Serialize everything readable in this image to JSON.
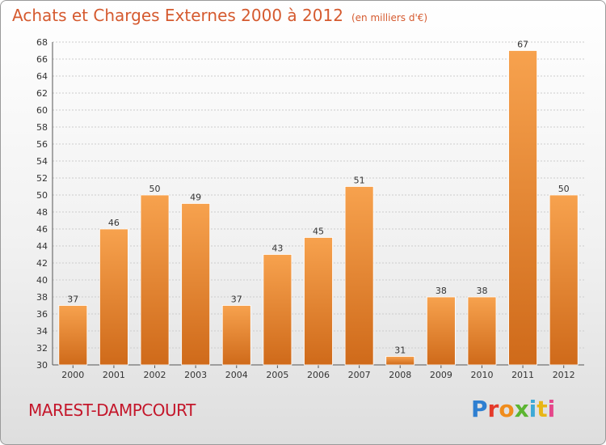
{
  "header": {
    "title": "Achats et Charges Externes 2000 à 2012",
    "unit": "(en milliers d'€)"
  },
  "footer": {
    "commune": "MAREST-DAMPCOURT",
    "logo_letters": [
      "P",
      "r",
      "o",
      "x",
      "i",
      "t",
      "i"
    ]
  },
  "colors": {
    "bar_light": "#f7a24e",
    "bar_dark": "#cf6a1a",
    "title": "#d55a2f",
    "commune": "#c4172b",
    "grid": "#cccccc"
  },
  "chart_data": {
    "type": "bar",
    "title": "Achats et Charges Externes 2000 à 2012",
    "subtitle": "(en milliers d'€)",
    "xlabel": "",
    "ylabel": "",
    "categories": [
      "2000",
      "2001",
      "2002",
      "2003",
      "2004",
      "2005",
      "2006",
      "2007",
      "2008",
      "2009",
      "2010",
      "2011",
      "2012"
    ],
    "values": [
      37,
      46,
      50,
      49,
      37,
      43,
      45,
      51,
      31,
      38,
      38,
      67,
      50
    ],
    "ylim": [
      30,
      68
    ],
    "yticks": [
      30,
      32,
      34,
      36,
      38,
      40,
      42,
      44,
      46,
      48,
      50,
      52,
      54,
      56,
      58,
      60,
      62,
      64,
      66,
      68
    ],
    "grid": true,
    "data_labels": true
  }
}
